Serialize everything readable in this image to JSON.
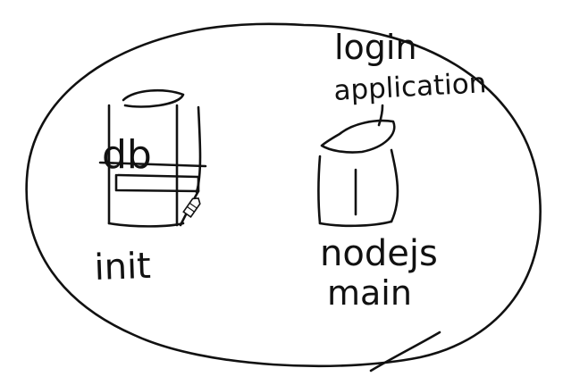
{
  "canvas": {
    "background": "#ffffff",
    "ink": "#111111"
  },
  "labels": {
    "db": "db",
    "init": "init",
    "app_line1": "login",
    "app_line2": "application",
    "nodejs": "nodejs",
    "main": "main"
  },
  "cursor": {
    "icon": "pen-cursor-icon"
  }
}
